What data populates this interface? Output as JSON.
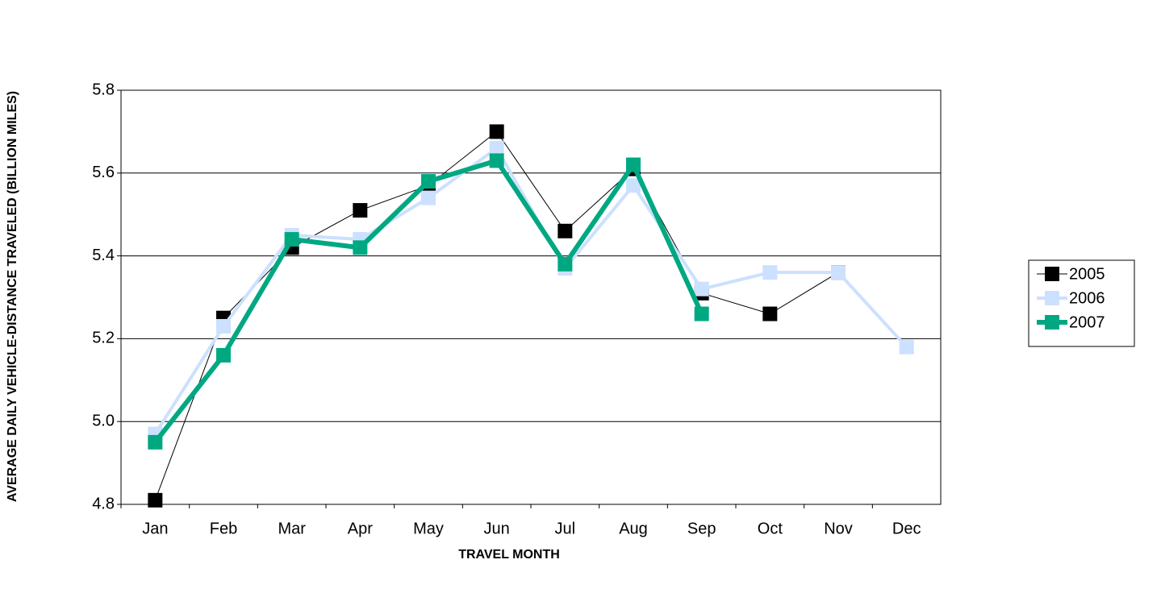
{
  "chart_data": {
    "type": "line",
    "y_label": "AVERAGE DAILY VEHICLE-DISTANCE TRAVELED (BILLION MILES)",
    "x_label": "TRAVEL MONTH",
    "categories": [
      "Jan",
      "Feb",
      "Mar",
      "Apr",
      "May",
      "Jun",
      "Jul",
      "Aug",
      "Sep",
      "Oct",
      "Nov",
      "Dec"
    ],
    "series": [
      {
        "name": "2005",
        "color": "#000000",
        "values": [
          4.81,
          5.25,
          5.42,
          5.51,
          5.57,
          5.7,
          5.46,
          5.61,
          5.31,
          5.26,
          5.36,
          null
        ]
      },
      {
        "name": "2006",
        "color": "#cce0ff",
        "values": [
          4.97,
          5.23,
          5.45,
          5.44,
          5.54,
          5.66,
          5.37,
          5.57,
          5.32,
          5.36,
          5.36,
          5.18
        ]
      },
      {
        "name": "2007",
        "color": "#00a882",
        "values": [
          4.95,
          5.16,
          5.44,
          5.42,
          5.58,
          5.63,
          5.38,
          5.62,
          5.26,
          null,
          null,
          null
        ]
      }
    ],
    "ylim": [
      4.8,
      5.8
    ],
    "yticks": [
      4.8,
      {
        "value": 5,
        "label": "5.0"
      },
      5.2,
      5.4,
      5.6,
      5.8
    ],
    "grid": true,
    "legend": "right"
  }
}
